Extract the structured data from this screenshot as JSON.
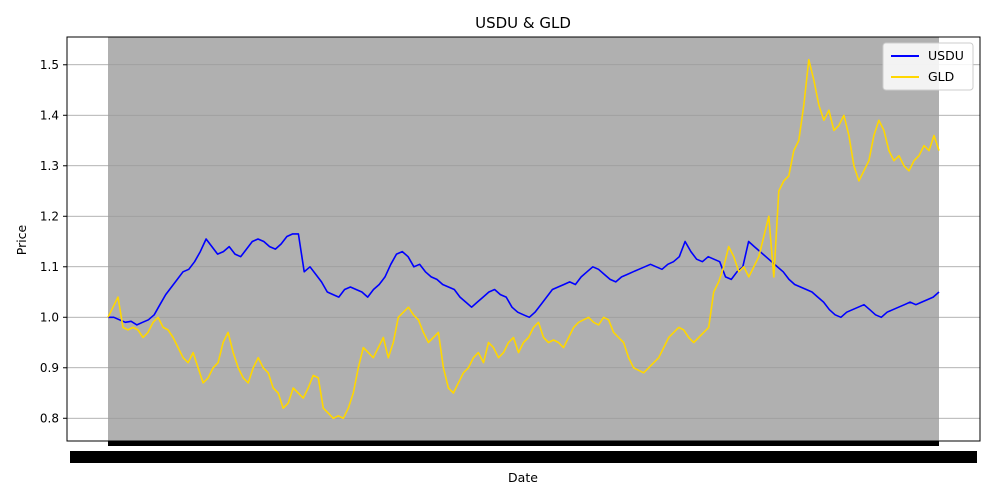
{
  "chart_data": {
    "type": "line",
    "title": "USDU & GLD",
    "xlabel": "Date",
    "ylabel": "Price",
    "ylim": [
      0.755,
      1.555
    ],
    "yticks": [
      0.8,
      0.9,
      1.0,
      1.1,
      1.2,
      1.3,
      1.4,
      1.5
    ],
    "grid": "horizontal",
    "legend": "top-right",
    "x_tick_labels_note": "overlapping date ticks rendered as a solid band",
    "plot_background": "#b0b0b0",
    "series": [
      {
        "name": "USDU",
        "color": "#0000ff",
        "values": [
          1.0,
          1.0,
          0.995,
          0.99,
          0.992,
          0.985,
          0.99,
          0.995,
          1.005,
          1.025,
          1.045,
          1.06,
          1.075,
          1.09,
          1.095,
          1.11,
          1.13,
          1.155,
          1.14,
          1.125,
          1.13,
          1.14,
          1.125,
          1.12,
          1.135,
          1.15,
          1.155,
          1.15,
          1.14,
          1.135,
          1.145,
          1.16,
          1.165,
          1.165,
          1.09,
          1.1,
          1.085,
          1.07,
          1.05,
          1.045,
          1.04,
          1.055,
          1.06,
          1.055,
          1.05,
          1.04,
          1.055,
          1.065,
          1.08,
          1.105,
          1.125,
          1.13,
          1.12,
          1.1,
          1.105,
          1.09,
          1.08,
          1.075,
          1.065,
          1.06,
          1.055,
          1.04,
          1.03,
          1.02,
          1.03,
          1.04,
          1.05,
          1.055,
          1.045,
          1.04,
          1.02,
          1.01,
          1.005,
          1.0,
          1.01,
          1.025,
          1.04,
          1.055,
          1.06,
          1.065,
          1.07,
          1.065,
          1.08,
          1.09,
          1.1,
          1.095,
          1.085,
          1.075,
          1.07,
          1.08,
          1.085,
          1.09,
          1.095,
          1.1,
          1.105,
          1.1,
          1.095,
          1.105,
          1.11,
          1.12,
          1.15,
          1.13,
          1.115,
          1.11,
          1.12,
          1.115,
          1.11,
          1.08,
          1.075,
          1.09,
          1.1,
          1.15,
          1.14,
          1.13,
          1.12,
          1.11,
          1.1,
          1.09,
          1.075,
          1.065,
          1.06,
          1.055,
          1.05,
          1.04,
          1.03,
          1.015,
          1.005,
          1.0,
          1.01,
          1.015,
          1.02,
          1.025,
          1.015,
          1.005,
          1.0,
          1.01,
          1.015,
          1.02,
          1.025,
          1.03,
          1.025,
          1.03,
          1.035,
          1.04,
          1.05
        ]
      },
      {
        "name": "GLD",
        "color": "#ffd700",
        "values": [
          1.0,
          1.02,
          1.04,
          0.98,
          0.975,
          0.98,
          0.975,
          0.96,
          0.97,
          0.99,
          1.0,
          0.98,
          0.975,
          0.96,
          0.94,
          0.92,
          0.91,
          0.93,
          0.9,
          0.87,
          0.88,
          0.9,
          0.91,
          0.95,
          0.97,
          0.93,
          0.9,
          0.88,
          0.87,
          0.9,
          0.92,
          0.9,
          0.89,
          0.86,
          0.85,
          0.82,
          0.83,
          0.86,
          0.85,
          0.84,
          0.86,
          0.885,
          0.88,
          0.82,
          0.81,
          0.8,
          0.805,
          0.8,
          0.82,
          0.85,
          0.9,
          0.94,
          0.93,
          0.92,
          0.94,
          0.96,
          0.92,
          0.95,
          1.0,
          1.01,
          1.02,
          1.005,
          0.995,
          0.97,
          0.95,
          0.96,
          0.97,
          0.9,
          0.86,
          0.85,
          0.87,
          0.89,
          0.9,
          0.92,
          0.93,
          0.91,
          0.95,
          0.94,
          0.92,
          0.93,
          0.95,
          0.96,
          0.93,
          0.95,
          0.96,
          0.98,
          0.99,
          0.96,
          0.95,
          0.955,
          0.95,
          0.94,
          0.96,
          0.98,
          0.99,
          0.995,
          1.0,
          0.99,
          0.985,
          1.0,
          0.995,
          0.97,
          0.96,
          0.95,
          0.92,
          0.9,
          0.895,
          0.89,
          0.9,
          0.91,
          0.92,
          0.94,
          0.96,
          0.97,
          0.98,
          0.975,
          0.96,
          0.95,
          0.96,
          0.97,
          0.98,
          1.05,
          1.07,
          1.1,
          1.14,
          1.12,
          1.09,
          1.1,
          1.08,
          1.1,
          1.12,
          1.16,
          1.2,
          1.08,
          1.25,
          1.27,
          1.28,
          1.33,
          1.35,
          1.42,
          1.51,
          1.47,
          1.42,
          1.39,
          1.41,
          1.37,
          1.38,
          1.4,
          1.36,
          1.3,
          1.27,
          1.29,
          1.31,
          1.36,
          1.39,
          1.37,
          1.33,
          1.31,
          1.32,
          1.3,
          1.29,
          1.31,
          1.32,
          1.34,
          1.33,
          1.36,
          1.33
        ]
      }
    ]
  }
}
